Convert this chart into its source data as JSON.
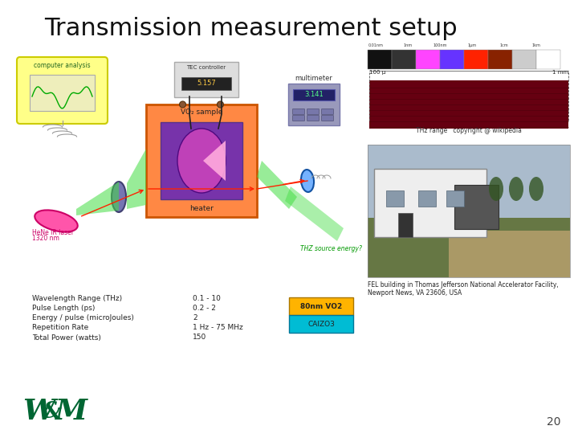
{
  "title": "Transmission measurement setup",
  "background_color": "#ffffff",
  "title_fontsize": 22,
  "table_labels": [
    "Wavelength Range (THz)",
    "Pulse Length (ps)",
    "Energy / pulse (microJoules)",
    "Repetition Rate",
    "Total Power (watts)"
  ],
  "table_values": [
    "0.1 - 10",
    "0.2 - 2",
    "2",
    "1 Hz - 75 MHz",
    "150"
  ],
  "box1_text": "80nm VO2",
  "box1_color": "#FFB300",
  "box2_text": "CAlZO3",
  "box2_color": "#00BCD4",
  "thz_caption": "THz range   copyright @ wikipedia",
  "fel_caption": "FEL building in Thomas Jefferson National Accelerator Facility,\nNewport News, VA 23606, USA",
  "page_number": "20",
  "label_left1": "HeNe IR laser",
  "label_left2": "1320 nm",
  "label_right": "THZ source energy?",
  "label_computer": "computer analysis",
  "label_tec": "TEC controller",
  "label_tec_val": "5.157",
  "label_multimeter": "multimeter",
  "label_multimeter_val": "3.141",
  "label_vo2": "VO₂ sample",
  "label_heater": "heater",
  "comp_color": "#FFFF88",
  "comp_edge": "#CCCC00",
  "vo2_color": "#FF8844",
  "vo2_edge": "#CC5500",
  "laser_color": "#FF55AA",
  "laser_edge": "#CC0066",
  "lens_color": "#9999CC",
  "detector_color": "#88BBFF",
  "beam_green": "#44DD44",
  "beam_red": "#FF2200",
  "sample_purple": "#9933BB",
  "sample_pink": "#FF88CC"
}
